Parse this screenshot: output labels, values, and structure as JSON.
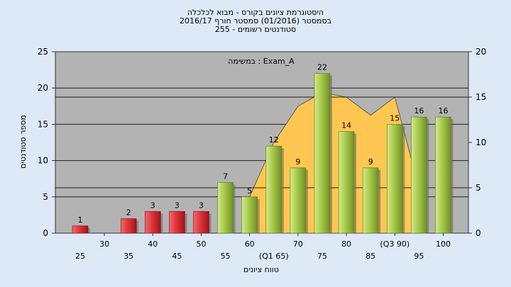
{
  "chart_data": {
    "type": "bar",
    "title_lines": [
      "היסטוגרמת ציונים בקורס - מבוא לכלכלה",
      "בסמסטר  (01/2016)  סמסטר חורף 2016/17",
      "255 - סטודנטים רשומים"
    ],
    "annotation": "במשימה : Exam_A",
    "xlabel": "טווח ציונים",
    "ylabel": "מספר סטודנטים",
    "ylim": [
      0,
      25
    ],
    "y_ticks": [
      0,
      5,
      10,
      15,
      20,
      25
    ],
    "y2lim": [
      0,
      20
    ],
    "y2_ticks": [
      0,
      5,
      10,
      15,
      20
    ],
    "x_tick_labels_row1": [
      "30",
      "40",
      "50",
      "60",
      "70",
      "80",
      "(Q3 90)",
      "100"
    ],
    "x_tick_labels_row2": [
      "25",
      "35",
      "45",
      "55",
      "(Q1 65)",
      "75",
      "85",
      "95"
    ],
    "categories": [
      "25",
      "30",
      "35",
      "40",
      "45",
      "50",
      "55",
      "60",
      "65",
      "70",
      "75",
      "80",
      "85",
      "90",
      "95",
      "100"
    ],
    "values": [
      1,
      0,
      2,
      3,
      3,
      3,
      7,
      5,
      12,
      9,
      22,
      14,
      9,
      15,
      16,
      16
    ],
    "bar_colors_by_category": [
      "red",
      "red",
      "red",
      "red",
      "red",
      "red",
      "green",
      "green",
      "green",
      "green",
      "green",
      "green",
      "green",
      "green",
      "green",
      "green"
    ],
    "area_series": {
      "x": [
        "60",
        "65",
        "70",
        "75",
        "80",
        "85",
        "90",
        "95"
      ],
      "values": [
        4,
        10,
        14,
        15.5,
        15,
        13,
        15,
        5
      ]
    },
    "horizontal_lines_y2": [
      15,
      5
    ],
    "grid": true,
    "colors": {
      "background": "#dde9f6",
      "plot": "#b3b3b3",
      "red_bar": "#e0343a",
      "green_bar": "#a6c94a",
      "area": "#ffc751"
    }
  }
}
